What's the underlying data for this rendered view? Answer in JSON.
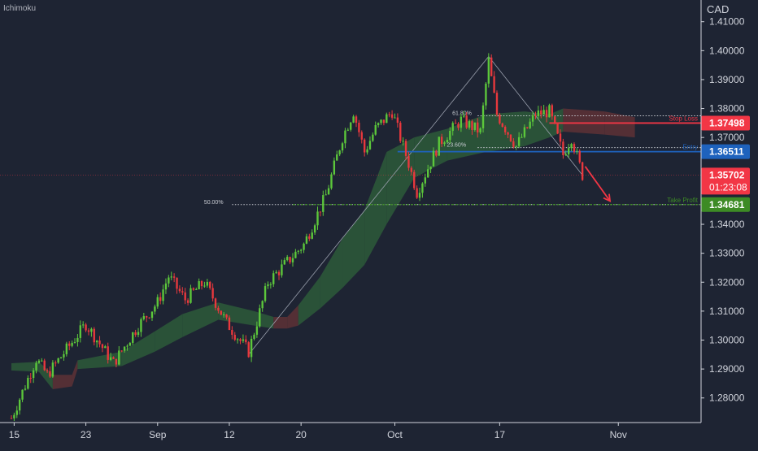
{
  "indicator": {
    "name": "Ichimoku"
  },
  "currency": "CAD",
  "chart_data": {
    "type": "candlestick",
    "y_axis": {
      "range": [
        1.2715,
        1.4175
      ],
      "ticks": [
        1.28,
        1.29,
        1.3,
        1.31,
        1.32,
        1.33,
        1.34,
        1.35,
        1.36,
        1.37,
        1.38,
        1.39,
        1.4,
        1.41
      ],
      "tick_labels": [
        "1.28000",
        "1.29000",
        "1.30000",
        "1.31000",
        "1.32000",
        "1.33000",
        "1.34000",
        "1.35000",
        "1.36000",
        "1.37000",
        "1.38000",
        "1.39000",
        "1.40000",
        "1.41000"
      ]
    },
    "x_axis": {
      "labels": [
        {
          "text": "15",
          "bar": 1
        },
        {
          "text": "23",
          "bar": 27
        },
        {
          "text": "Sep",
          "bar": 53
        },
        {
          "text": "12",
          "bar": 79
        },
        {
          "text": "20",
          "bar": 105
        },
        {
          "text": "Oct",
          "bar": 139
        },
        {
          "text": "17",
          "bar": 177
        },
        {
          "text": "Nov",
          "bar": 220
        }
      ],
      "total_bars": 250
    },
    "swing_points": [
      {
        "bar": 0,
        "price": 1.273
      },
      {
        "bar": 9,
        "price": 1.2935
      },
      {
        "bar": 13,
        "price": 1.288
      },
      {
        "bar": 27,
        "price": 1.3055
      },
      {
        "bar": 37,
        "price": 1.292
      },
      {
        "bar": 46,
        "price": 1.305
      },
      {
        "bar": 53,
        "price": 1.313
      },
      {
        "bar": 57,
        "price": 1.322
      },
      {
        "bar": 63,
        "price": 1.314
      },
      {
        "bar": 70,
        "price": 1.32
      },
      {
        "bar": 78,
        "price": 1.306
      },
      {
        "bar": 86,
        "price": 1.296
      },
      {
        "bar": 93,
        "price": 1.32
      },
      {
        "bar": 106,
        "price": 1.333
      },
      {
        "bar": 114,
        "price": 1.35
      },
      {
        "bar": 120,
        "price": 1.37
      },
      {
        "bar": 124,
        "price": 1.379
      },
      {
        "bar": 128,
        "price": 1.365
      },
      {
        "bar": 132,
        "price": 1.373
      },
      {
        "bar": 138,
        "price": 1.379
      },
      {
        "bar": 144,
        "price": 1.361
      },
      {
        "bar": 147,
        "price": 1.351
      },
      {
        "bar": 155,
        "price": 1.368
      },
      {
        "bar": 163,
        "price": 1.376
      },
      {
        "bar": 170,
        "price": 1.372
      },
      {
        "bar": 173,
        "price": 1.3965
      },
      {
        "bar": 176,
        "price": 1.378
      },
      {
        "bar": 183,
        "price": 1.367
      },
      {
        "bar": 190,
        "price": 1.378
      },
      {
        "bar": 195,
        "price": 1.379
      },
      {
        "bar": 200,
        "price": 1.364
      },
      {
        "bar": 203,
        "price": 1.37
      },
      {
        "bar": 207,
        "price": 1.357
      }
    ],
    "cloud_segments": [
      {
        "bar": 0,
        "top": 1.292,
        "bottom": 1.2895,
        "color": "green"
      },
      {
        "bar": 10,
        "top": 1.2925,
        "bottom": 1.289,
        "color": "green"
      },
      {
        "bar": 15,
        "top": 1.288,
        "bottom": 1.283,
        "color": "red"
      },
      {
        "bar": 22,
        "top": 1.288,
        "bottom": 1.284,
        "color": "red"
      },
      {
        "bar": 24,
        "top": 1.293,
        "bottom": 1.29,
        "color": "green"
      },
      {
        "bar": 40,
        "top": 1.296,
        "bottom": 1.291,
        "color": "green"
      },
      {
        "bar": 52,
        "top": 1.303,
        "bottom": 1.296,
        "color": "green"
      },
      {
        "bar": 62,
        "top": 1.309,
        "bottom": 1.301,
        "color": "green"
      },
      {
        "bar": 75,
        "top": 1.313,
        "bottom": 1.307,
        "color": "green"
      },
      {
        "bar": 88,
        "top": 1.31,
        "bottom": 1.305,
        "color": "green"
      },
      {
        "bar": 95,
        "top": 1.308,
        "bottom": 1.304,
        "color": "red"
      },
      {
        "bar": 100,
        "top": 1.308,
        "bottom": 1.304,
        "color": "red"
      },
      {
        "bar": 104,
        "top": 1.312,
        "bottom": 1.305,
        "color": "green"
      },
      {
        "bar": 112,
        "top": 1.322,
        "bottom": 1.311,
        "color": "green"
      },
      {
        "bar": 120,
        "top": 1.335,
        "bottom": 1.318,
        "color": "green"
      },
      {
        "bar": 128,
        "top": 1.345,
        "bottom": 1.326,
        "color": "green"
      },
      {
        "bar": 136,
        "top": 1.365,
        "bottom": 1.34,
        "color": "green"
      },
      {
        "bar": 146,
        "top": 1.37,
        "bottom": 1.356,
        "color": "green"
      },
      {
        "bar": 158,
        "top": 1.373,
        "bottom": 1.362,
        "color": "green"
      },
      {
        "bar": 172,
        "top": 1.378,
        "bottom": 1.365,
        "color": "green"
      },
      {
        "bar": 186,
        "top": 1.379,
        "bottom": 1.367,
        "color": "green"
      },
      {
        "bar": 195,
        "top": 1.378,
        "bottom": 1.37,
        "color": "green"
      },
      {
        "bar": 200,
        "top": 1.38,
        "bottom": 1.372,
        "color": "red"
      },
      {
        "bar": 215,
        "top": 1.379,
        "bottom": 1.371,
        "color": "red"
      },
      {
        "bar": 226,
        "top": 1.377,
        "bottom": 1.37,
        "color": "red"
      }
    ],
    "fibonacci": {
      "drawing_lines": [
        {
          "from": {
            "bar": 86,
            "price": 1.295
          },
          "to": {
            "bar": 173,
            "price": 1.398
          }
        },
        {
          "from": {
            "bar": 173,
            "price": 1.398
          },
          "to": {
            "bar": 207,
            "price": 1.357
          }
        }
      ],
      "levels": [
        {
          "label": "61.80%",
          "price": 1.3775,
          "from_bar": 169,
          "label_bar": 168
        },
        {
          "label": "23.60%",
          "price": 1.3665,
          "from_bar": 169,
          "label_bar": 166
        },
        {
          "label": "50.00%",
          "price": 1.3468,
          "from_bar": 80,
          "label_bar": 78
        }
      ]
    },
    "levels": [
      {
        "name": "Stop Loss",
        "price": 1.37498,
        "price_label": "1.37498",
        "color": "#f23645",
        "text_color": "#ffffff",
        "from_bar": 195
      },
      {
        "name": "Entry",
        "price": 1.36511,
        "price_label": "1.36511",
        "color": "#1e62bd",
        "text_color": "#ffffff",
        "from_bar": 140
      },
      {
        "name": "Take Profit",
        "price": 1.34681,
        "price_label": "1.34681",
        "color": "#3d8b25",
        "text_color": "#ffffff",
        "from_bar": 102
      }
    ],
    "current_price": {
      "value": "1.35702",
      "price": 1.35702,
      "countdown": "01:23:08",
      "color": "#f23645"
    },
    "arrow": {
      "from": {
        "bar": 208,
        "price": 1.36
      },
      "to": {
        "bar": 217,
        "price": 1.348
      },
      "color": "#f23645"
    },
    "colors": {
      "background": "#1e2433",
      "up_candle": "#5cc73b",
      "down_candle": "#e8383d",
      "cloud_green": "#2d5a3a",
      "cloud_red": "#5e3136",
      "axis_text": "#d1d4dc",
      "fib_line": "#9aa0ad"
    }
  }
}
